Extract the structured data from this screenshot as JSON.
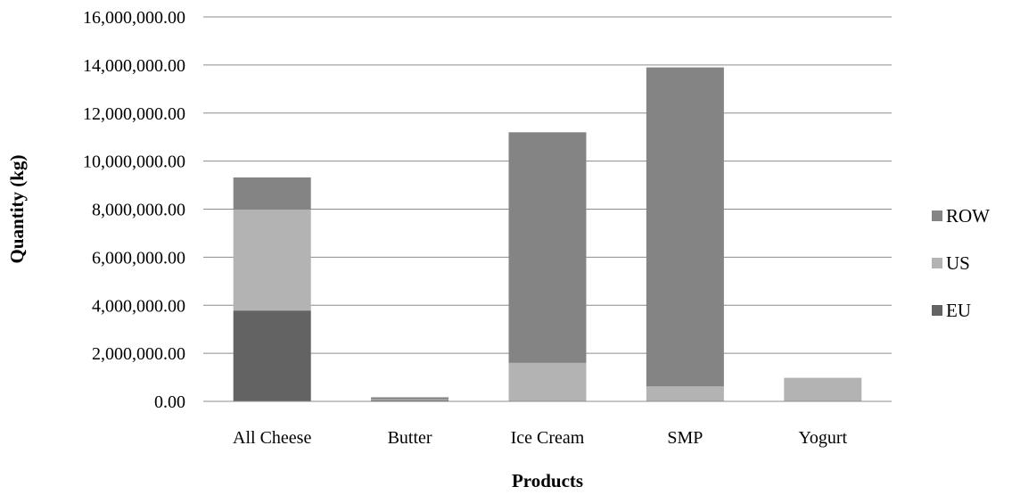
{
  "chart_data": {
    "type": "bar",
    "stacked": true,
    "title": "",
    "xlabel": "Products",
    "ylabel": "Quantity (kg)",
    "categories": [
      "All Cheese",
      "Butter",
      "Ice Cream",
      "SMP",
      "Yogurt"
    ],
    "ylim": [
      0,
      16000000
    ],
    "yticks": [
      0,
      2000000,
      4000000,
      6000000,
      8000000,
      10000000,
      12000000,
      14000000,
      16000000
    ],
    "ytick_labels": [
      "0.00",
      "2,000,000.00",
      "4,000,000.00",
      "6,000,000.00",
      "8,000,000.00",
      "10,000,000.00",
      "12,000,000.00",
      "14,000,000.00",
      "16,000,000.00"
    ],
    "grid": true,
    "legend_position": "right",
    "series": [
      {
        "name": "EU",
        "color": "#636363",
        "values": [
          3780000,
          50000,
          0,
          0,
          0
        ]
      },
      {
        "name": "US",
        "color": "#b3b3b3",
        "values": [
          4200000,
          40000,
          1600000,
          620000,
          980000
        ]
      },
      {
        "name": "ROW",
        "color": "#848484",
        "values": [
          1340000,
          80000,
          9600000,
          13280000,
          0
        ]
      }
    ]
  }
}
